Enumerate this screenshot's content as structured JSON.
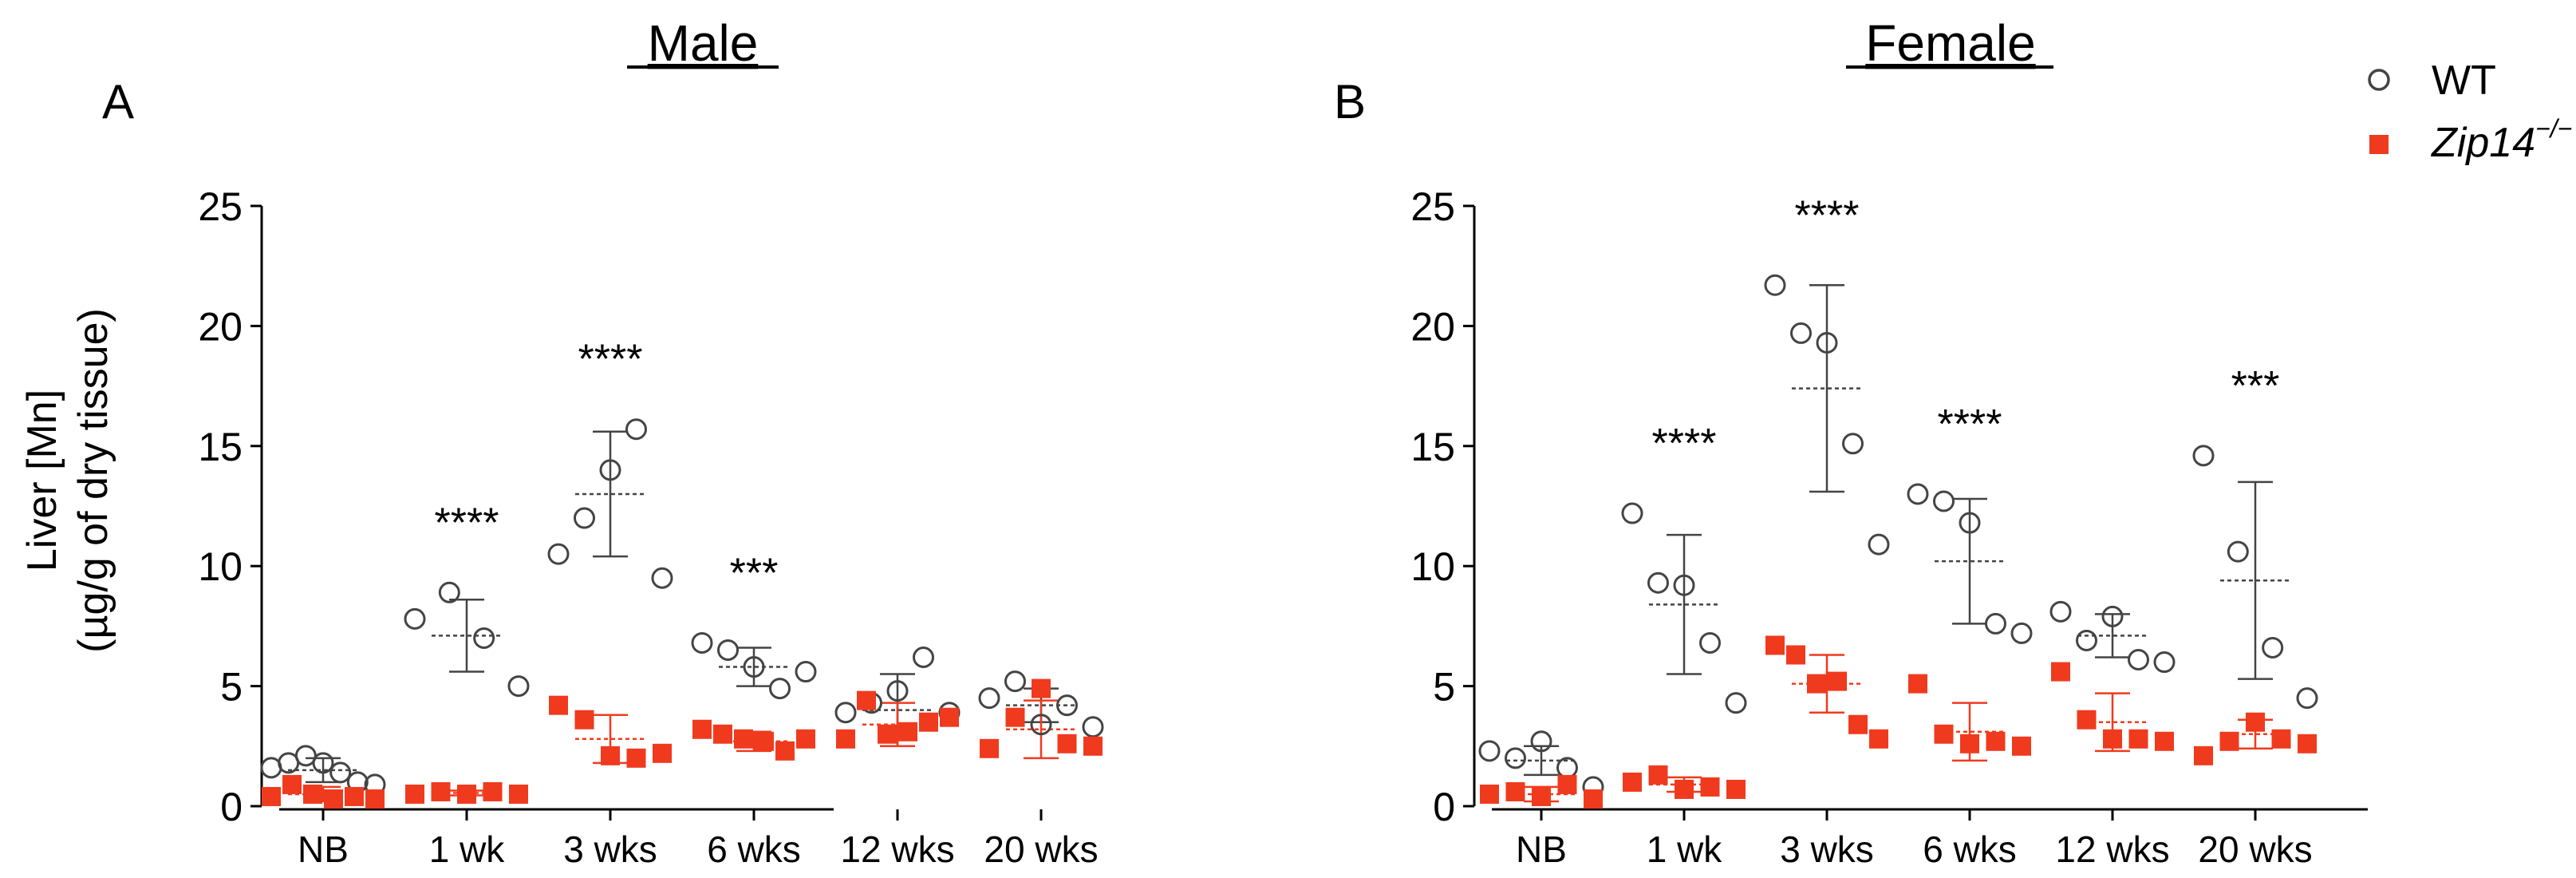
{
  "legend": {
    "wt_label": "WT",
    "ko_label": "Zip14",
    "ko_sup": "−/−",
    "position": "top-right"
  },
  "y_axis_label_line1": "Liver [Mn]",
  "y_axis_label_line2": "(µg/g of dry tissue)",
  "colors": {
    "wt": "#444444",
    "ko": "#f03a1e",
    "axis": "#000000"
  },
  "chart_data": [
    {
      "type": "scatter",
      "panel": "A",
      "title": "Male",
      "ylim": [
        0,
        25
      ],
      "yticks": [
        "0",
        "5",
        "10",
        "15",
        "20",
        "25"
      ],
      "categories": [
        "NB",
        "1 wk",
        "3 wks",
        "6 wks",
        "12 wks",
        "20 wks"
      ],
      "significance": [
        "",
        "****",
        "****",
        "***",
        "",
        ""
      ],
      "series": [
        {
          "name": "WT",
          "marker": "open-circle",
          "points": [
            [
              1.6,
              1.8,
              2.1,
              1.8,
              1.4,
              1.0,
              0.9
            ],
            [
              7.8,
              8.9,
              7.0,
              5.0
            ],
            [
              10.5,
              12.0,
              14.0,
              15.7,
              9.5
            ],
            [
              6.8,
              6.5,
              5.8,
              4.9,
              5.6
            ],
            [
              3.9,
              4.3,
              4.8,
              6.2,
              3.9
            ],
            [
              4.5,
              5.2,
              3.4,
              4.2,
              3.3
            ]
          ],
          "mean": [
            1.5,
            7.1,
            13.0,
            5.8,
            4.0,
            4.2
          ],
          "sd": [
            0.5,
            1.5,
            2.6,
            0.8,
            1.5,
            0.7
          ]
        },
        {
          "name": "Zip14−/−",
          "marker": "filled-square",
          "points": [
            [
              0.4,
              0.9,
              0.5,
              0.3,
              0.4,
              0.3
            ],
            [
              0.5,
              0.6,
              0.5,
              0.6,
              0.5
            ],
            [
              4.2,
              3.6,
              2.1,
              2.0,
              2.2
            ],
            [
              3.2,
              3.0,
              2.8,
              2.7,
              2.3,
              2.8
            ],
            [
              2.8,
              4.4,
              3.0,
              3.1,
              3.5,
              3.7
            ],
            [
              2.4,
              3.7,
              4.9,
              2.6,
              2.5
            ]
          ],
          "mean": [
            0.5,
            0.55,
            2.8,
            2.7,
            3.4,
            3.2
          ],
          "sd": [
            0.3,
            0.1,
            1.0,
            0.4,
            0.9,
            1.2
          ]
        }
      ]
    },
    {
      "type": "scatter",
      "panel": "B",
      "title": "Female",
      "ylim": [
        0,
        25
      ],
      "yticks": [
        "0",
        "5",
        "10",
        "15",
        "20",
        "25"
      ],
      "categories": [
        "NB",
        "1 wk",
        "3 wks",
        "6 wks",
        "12 wks",
        "20 wks"
      ],
      "significance": [
        "",
        "****",
        "****",
        "****",
        "",
        "***"
      ],
      "series": [
        {
          "name": "WT",
          "marker": "open-circle",
          "points": [
            [
              2.3,
              2.0,
              2.7,
              1.6,
              0.8
            ],
            [
              12.2,
              9.3,
              9.2,
              6.8,
              4.3
            ],
            [
              21.7,
              19.7,
              19.3,
              15.1,
              10.9
            ],
            [
              13.0,
              12.7,
              11.8,
              7.6,
              7.2
            ],
            [
              8.1,
              6.9,
              7.9,
              6.1,
              6.0
            ],
            [
              14.6,
              10.6,
              6.6,
              4.5
            ]
          ],
          "mean": [
            1.9,
            8.4,
            17.4,
            10.2,
            7.1,
            9.4
          ],
          "sd": [
            0.6,
            2.9,
            4.3,
            2.6,
            0.9,
            4.1
          ]
        },
        {
          "name": "Zip14−/−",
          "marker": "filled-square",
          "points": [
            [
              0.5,
              0.6,
              0.4,
              0.9,
              0.3
            ],
            [
              1.0,
              1.3,
              0.7,
              0.8,
              0.7
            ],
            [
              6.7,
              6.3,
              5.1,
              5.2,
              3.4,
              2.8
            ],
            [
              5.1,
              3.0,
              2.6,
              2.7,
              2.5
            ],
            [
              5.6,
              3.6,
              2.8,
              2.8,
              2.7
            ],
            [
              2.1,
              2.7,
              3.5,
              2.8,
              2.6
            ]
          ],
          "mean": [
            0.5,
            0.9,
            5.1,
            3.1,
            3.5,
            3.0
          ],
          "sd": [
            0.3,
            0.3,
            1.2,
            1.2,
            1.2,
            0.6
          ]
        }
      ]
    }
  ]
}
